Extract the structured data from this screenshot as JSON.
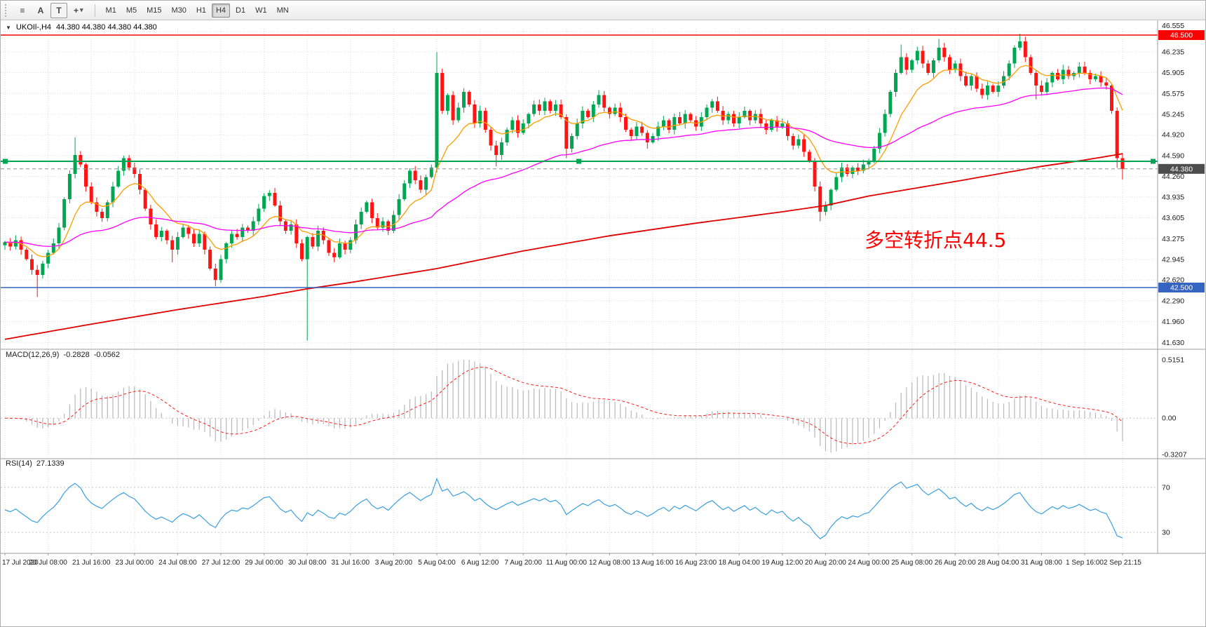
{
  "toolbar": {
    "a_label": "A",
    "t_label": "T",
    "timeframes": [
      "M1",
      "M5",
      "M15",
      "M30",
      "H1",
      "H4",
      "D1",
      "W1",
      "MN"
    ],
    "active_timeframe": "H4"
  },
  "symbol_bar": {
    "symbol": "UKOIl-,H4",
    "ohlc": "44.380 44.380 44.380 44.380"
  },
  "chart_data": {
    "type": "candlestick",
    "symbol": "UKOIl-",
    "timeframe": "H4",
    "price_range": [
      41.6,
      46.6
    ],
    "price_axis_labels": [
      "46.555",
      "46.235",
      "45.905",
      "45.575",
      "45.245",
      "44.920",
      "44.590",
      "44.260",
      "43.935",
      "43.605",
      "43.275",
      "42.945",
      "42.620",
      "42.290",
      "41.960",
      "41.630"
    ],
    "price_lines": [
      {
        "value": 46.5,
        "label": "46.500",
        "color": "#ff0000",
        "selected": false,
        "badge": true
      },
      {
        "value": 44.5,
        "label": "44.500",
        "color": "#00a651",
        "selected": true,
        "badge": false
      },
      {
        "value": 42.5,
        "label": "42.500",
        "color": "#3565c0",
        "selected": false,
        "badge": true
      }
    ],
    "current_price": {
      "value": 44.38,
      "label": "44.380",
      "badge_color": "#4d4d4d"
    },
    "annotation": {
      "text": "多空转折点44.5",
      "color": "#ff0000"
    },
    "time_labels": [
      {
        "i": 0,
        "t": "17 Jul 2020"
      },
      {
        "i": 8,
        "t": "20 Jul 08:00"
      },
      {
        "i": 16,
        "t": "21 Jul 16:00"
      },
      {
        "i": 24,
        "t": "23 Jul 00:00"
      },
      {
        "i": 32,
        "t": "24 Jul 08:00"
      },
      {
        "i": 40,
        "t": "27 Jul 12:00"
      },
      {
        "i": 48,
        "t": "29 Jul 00:00"
      },
      {
        "i": 56,
        "t": "30 Jul 08:00"
      },
      {
        "i": 64,
        "t": "31 Jul 16:00"
      },
      {
        "i": 72,
        "t": "3 Aug 20:00"
      },
      {
        "i": 80,
        "t": "5 Aug 04:00"
      },
      {
        "i": 88,
        "t": "6 Aug 12:00"
      },
      {
        "i": 96,
        "t": "7 Aug 20:00"
      },
      {
        "i": 104,
        "t": "11 Aug 00:00"
      },
      {
        "i": 112,
        "t": "12 Aug 08:00"
      },
      {
        "i": 120,
        "t": "13 Aug 16:00"
      },
      {
        "i": 128,
        "t": "16 Aug 23:00"
      },
      {
        "i": 136,
        "t": "18 Aug 04:00"
      },
      {
        "i": 144,
        "t": "19 Aug 12:00"
      },
      {
        "i": 152,
        "t": "20 Aug 20:00"
      },
      {
        "i": 160,
        "t": "24 Aug 00:00"
      },
      {
        "i": 168,
        "t": "25 Aug 08:00"
      },
      {
        "i": 176,
        "t": "26 Aug 20:00"
      },
      {
        "i": 184,
        "t": "28 Aug 04:00"
      },
      {
        "i": 192,
        "t": "31 Aug 08:00"
      },
      {
        "i": 200,
        "t": "1 Sep 16:00"
      },
      {
        "i": 207,
        "t": "2 Sep 21:15"
      }
    ],
    "closes": [
      43.22,
      43.15,
      43.25,
      43.1,
      42.95,
      42.78,
      42.7,
      42.88,
      43.05,
      43.2,
      43.45,
      43.9,
      44.3,
      44.6,
      44.45,
      44.1,
      43.85,
      43.7,
      43.6,
      43.85,
      44.1,
      44.35,
      44.55,
      44.4,
      44.3,
      44.05,
      43.75,
      43.5,
      43.3,
      43.4,
      43.25,
      43.1,
      43.3,
      43.45,
      43.35,
      43.2,
      43.35,
      43.1,
      42.8,
      42.62,
      42.95,
      43.2,
      43.35,
      43.3,
      43.45,
      43.4,
      43.55,
      43.75,
      43.95,
      44.0,
      43.8,
      43.55,
      43.4,
      43.5,
      43.2,
      42.95,
      43.3,
      43.15,
      43.4,
      43.25,
      43.05,
      42.98,
      43.2,
      43.1,
      43.25,
      43.5,
      43.7,
      43.85,
      43.6,
      43.45,
      43.55,
      43.4,
      43.65,
      43.9,
      44.15,
      44.35,
      44.2,
      44.05,
      44.25,
      44.4,
      45.9,
      45.3,
      45.55,
      45.15,
      45.35,
      45.6,
      45.4,
      45.1,
      45.3,
      45.0,
      44.75,
      44.6,
      44.8,
      45.0,
      45.15,
      44.95,
      45.1,
      45.25,
      45.4,
      45.3,
      45.45,
      45.3,
      45.4,
      45.2,
      44.7,
      44.9,
      45.1,
      45.3,
      45.2,
      45.4,
      45.55,
      45.35,
      45.25,
      45.35,
      45.2,
      45.0,
      44.9,
      45.05,
      44.95,
      44.8,
      44.9,
      45.05,
      45.15,
      45.0,
      45.2,
      45.1,
      45.25,
      45.15,
      45.05,
      45.2,
      45.35,
      45.45,
      45.3,
      45.15,
      45.25,
      45.1,
      45.2,
      45.3,
      45.15,
      45.25,
      45.1,
      45.0,
      45.15,
      45.05,
      45.1,
      44.9,
      44.75,
      44.85,
      44.65,
      44.5,
      44.1,
      43.7,
      43.8,
      44.05,
      44.25,
      44.4,
      44.3,
      44.4,
      44.35,
      44.45,
      44.5,
      44.7,
      44.95,
      45.25,
      45.6,
      45.9,
      46.15,
      45.95,
      46.1,
      46.25,
      46.05,
      45.9,
      46.1,
      46.3,
      46.15,
      45.95,
      46.05,
      45.85,
      45.7,
      45.85,
      45.65,
      45.55,
      45.7,
      45.6,
      45.7,
      45.85,
      46.05,
      46.3,
      46.4,
      46.15,
      45.9,
      45.7,
      45.6,
      45.75,
      45.9,
      45.8,
      45.95,
      45.85,
      45.9,
      46.0,
      45.9,
      45.8,
      45.85,
      45.75,
      45.7,
      45.3,
      44.55,
      44.38
    ],
    "wick_overrides": {
      "6": {
        "low": 42.35
      },
      "13": {
        "high": 44.88
      },
      "31": {
        "low": 42.9
      },
      "39": {
        "low": 42.52
      },
      "56": {
        "low": 41.66
      },
      "80": {
        "high": 46.23
      },
      "91": {
        "low": 44.42
      },
      "104": {
        "low": 44.55
      },
      "119": {
        "low": 44.7
      },
      "151": {
        "low": 43.55
      },
      "166": {
        "high": 46.35
      },
      "173": {
        "high": 46.44
      },
      "188": {
        "high": 46.52
      },
      "191": {
        "low": 45.48
      },
      "206": {
        "low": 44.4
      },
      "207": {
        "low": 44.21
      }
    },
    "moving_averages": [
      {
        "period": 10,
        "color": "#ff9d00"
      },
      {
        "period": 50,
        "color": "#ff00ff"
      }
    ],
    "ma_slow_color": "#e00000",
    "ma_slow_anchors": [
      [
        0,
        41.68
      ],
      [
        16,
        41.92
      ],
      [
        32,
        42.15
      ],
      [
        48,
        42.36
      ],
      [
        56,
        42.48
      ],
      [
        64,
        42.58
      ],
      [
        80,
        42.8
      ],
      [
        96,
        43.08
      ],
      [
        112,
        43.32
      ],
      [
        128,
        43.52
      ],
      [
        144,
        43.7
      ],
      [
        152,
        43.8
      ],
      [
        160,
        43.95
      ],
      [
        176,
        44.18
      ],
      [
        192,
        44.42
      ],
      [
        200,
        44.52
      ],
      [
        207,
        44.62
      ]
    ],
    "macd": {
      "title": "MACD(12,26,9)",
      "value": "-0.2828",
      "signal": "-0.0562",
      "axis_labels": [
        "0.5151",
        "0.00",
        "-0.3207"
      ],
      "range": [
        -0.3207,
        0.5151
      ],
      "bar_color": "#b8b8b8",
      "signal_color": "#ff2020"
    },
    "rsi": {
      "title": "RSI(14)",
      "value": "27.1339",
      "levels": [
        "70",
        "30"
      ],
      "range": [
        12,
        88
      ],
      "line_color": "#3a9fe0"
    },
    "candle_up_color": "#00a651",
    "candle_down_color": "#ff1414"
  }
}
